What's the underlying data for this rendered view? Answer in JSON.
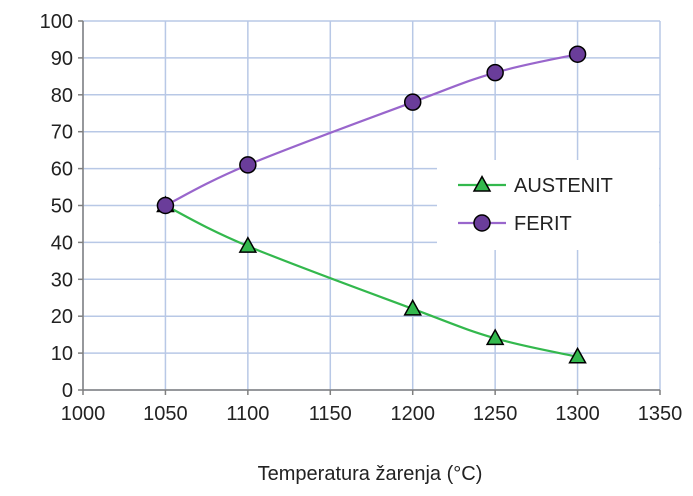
{
  "chart_data": {
    "type": "line",
    "title": "",
    "xlabel": "Temperatura žarenja (°C)",
    "ylabel": "",
    "xlim": [
      1000,
      1350
    ],
    "ylim": [
      0,
      100
    ],
    "x_ticks": [
      "1000",
      "1050",
      "1100",
      "1150",
      "1200",
      "1250",
      "1300",
      "1350"
    ],
    "y_ticks": [
      "0",
      "10",
      "20",
      "30",
      "40",
      "50",
      "60",
      "70",
      "80",
      "90",
      "100"
    ],
    "grid": true,
    "legend_position": "right",
    "series": [
      {
        "name": "AUSTENIT",
        "marker": "triangle",
        "line_color": "#33b84d",
        "marker_fill": "#33b84d",
        "x": [
          1050,
          1100,
          1200,
          1250,
          1300
        ],
        "y": [
          50,
          39,
          22,
          14,
          9
        ]
      },
      {
        "name": "FERIT",
        "marker": "circle",
        "line_color": "#9966cc",
        "marker_fill": "#6a3d9a",
        "x": [
          1050,
          1100,
          1200,
          1250,
          1300
        ],
        "y": [
          50,
          61,
          78,
          86,
          91
        ]
      }
    ]
  }
}
